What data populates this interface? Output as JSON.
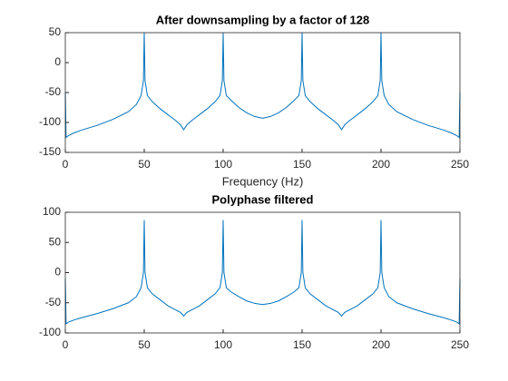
{
  "chart_data": [
    {
      "type": "line",
      "title": "After downsampling by a factor of 128",
      "xlabel": "Frequency (Hz)",
      "x": [
        0,
        0.5,
        2,
        5,
        10,
        20,
        30,
        40,
        45,
        48,
        49.5,
        50,
        50.5,
        52,
        55,
        60,
        65,
        70,
        73,
        75,
        77,
        80,
        85,
        90,
        95,
        98,
        99.5,
        100,
        100.5,
        102,
        105,
        110,
        115,
        120,
        125,
        130,
        135,
        140,
        145,
        148,
        149.5,
        150,
        150.5,
        152,
        155,
        160,
        165,
        170,
        173,
        175,
        177,
        180,
        185,
        190,
        195,
        198,
        199.5,
        200,
        200.5,
        202,
        205,
        210,
        220,
        230,
        240,
        245,
        248,
        249.5,
        250
      ],
      "series": [
        {
          "color": "#0072bd",
          "values": [
            -50,
            -125,
            -122,
            -118,
            -113,
            -105,
            -95,
            -82,
            -70,
            -55,
            -30,
            50,
            -30,
            -55,
            -65,
            -77,
            -87,
            -97,
            -104,
            -112,
            -104,
            -97,
            -87,
            -77,
            -65,
            -55,
            -30,
            50,
            -30,
            -55,
            -63,
            -75,
            -84,
            -90,
            -93,
            -90,
            -84,
            -75,
            -63,
            -55,
            -30,
            50,
            -30,
            -55,
            -65,
            -77,
            -87,
            -97,
            -104,
            -112,
            -104,
            -97,
            -87,
            -77,
            -65,
            -55,
            -30,
            50,
            -30,
            -55,
            -70,
            -82,
            -95,
            -105,
            -113,
            -118,
            -122,
            -125,
            -50
          ]
        }
      ],
      "xlim": [
        0,
        250
      ],
      "xticks": [
        0,
        50,
        100,
        150,
        200,
        250
      ],
      "ylim": [
        -150,
        50
      ],
      "yticks": [
        -150,
        -100,
        -50,
        0,
        50
      ],
      "grid": false
    },
    {
      "type": "line",
      "title": "Polyphase filtered",
      "x": [
        0,
        0.5,
        2,
        5,
        10,
        20,
        30,
        40,
        45,
        48,
        49.5,
        50,
        50.5,
        52,
        55,
        60,
        65,
        70,
        73,
        75,
        77,
        80,
        85,
        90,
        95,
        98,
        99.5,
        100,
        100.5,
        102,
        105,
        110,
        115,
        120,
        125,
        130,
        135,
        140,
        145,
        148,
        149.5,
        150,
        150.5,
        152,
        155,
        160,
        165,
        170,
        173,
        175,
        177,
        180,
        185,
        190,
        195,
        198,
        199.5,
        200,
        200.5,
        202,
        205,
        210,
        220,
        230,
        240,
        245,
        248,
        249.5,
        250
      ],
      "series": [
        {
          "color": "#0072bd",
          "values": [
            -10,
            -85,
            -82,
            -79,
            -75,
            -68,
            -60,
            -50,
            -40,
            -25,
            0,
            87,
            0,
            -25,
            -35,
            -45,
            -55,
            -62,
            -66,
            -72,
            -66,
            -62,
            -55,
            -45,
            -35,
            -25,
            0,
            87,
            0,
            -25,
            -32,
            -40,
            -47,
            -51,
            -53,
            -51,
            -47,
            -40,
            -32,
            -25,
            0,
            87,
            0,
            -25,
            -35,
            -45,
            -55,
            -62,
            -66,
            -72,
            -66,
            -62,
            -55,
            -45,
            -35,
            -25,
            0,
            87,
            0,
            -25,
            -40,
            -50,
            -60,
            -68,
            -75,
            -79,
            -82,
            -85,
            -10
          ]
        }
      ],
      "xlim": [
        0,
        250
      ],
      "xticks": [
        0,
        50,
        100,
        150,
        200,
        250
      ],
      "ylim": [
        -100,
        100
      ],
      "yticks": [
        -100,
        -50,
        0,
        50,
        100
      ],
      "grid": false
    }
  ]
}
